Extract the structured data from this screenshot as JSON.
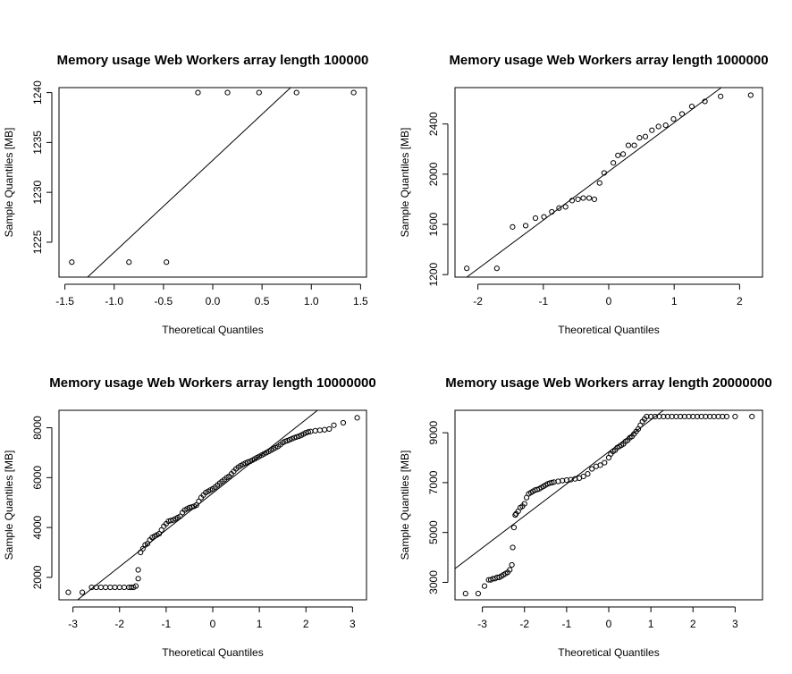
{
  "chart_data": [
    {
      "type": "scatter",
      "title": "Memory usage Web Workers array length  100000",
      "xlabel": "Theoretical Quantiles",
      "ylabel": "Sample Quantiles [MB]",
      "xlim": [
        -1.56,
        1.56
      ],
      "ylim": [
        1221.5,
        1240.5
      ],
      "xticks": [
        -1.5,
        -1.0,
        -0.5,
        0.0,
        0.5,
        1.0,
        1.5
      ],
      "xtick_labels": [
        "-1.5",
        "-1.0",
        "-0.5",
        "0.0",
        "0.5",
        "1.0",
        "1.5"
      ],
      "yticks": [
        1225,
        1230,
        1235,
        1240
      ],
      "ytick_labels": [
        "1225",
        "1230",
        "1235",
        "1240"
      ],
      "grid": false,
      "points": {
        "x": [
          -1.43,
          -0.85,
          -0.47,
          -0.15,
          0.15,
          0.47,
          0.85,
          1.43
        ],
        "y": [
          1223,
          1223,
          1223,
          1240,
          1240,
          1240,
          1240,
          1240
        ]
      },
      "qqline": {
        "x": [
          -1.27,
          0.79
        ],
        "y": [
          1221.5,
          1240.5
        ]
      }
    },
    {
      "type": "scatter",
      "title": "Memory usage Web Workers array length  1000000",
      "xlabel": "Theoretical Quantiles",
      "ylabel": "Sample Quantiles [MB]",
      "xlim": [
        -2.35,
        2.35
      ],
      "ylim": [
        1180,
        2690
      ],
      "xticks": [
        -2,
        -1,
        0,
        1,
        2
      ],
      "xtick_labels": [
        "-2",
        "-1",
        "0",
        "1",
        "2"
      ],
      "yticks": [
        1200,
        1600,
        2000,
        2400
      ],
      "ytick_labels": [
        "1200",
        "1600",
        "2000",
        "2400"
      ],
      "grid": false,
      "points": {
        "x": [
          -2.17,
          -1.71,
          -1.47,
          -1.27,
          -1.12,
          -0.99,
          -0.87,
          -0.76,
          -0.66,
          -0.56,
          -0.47,
          -0.39,
          -0.3,
          -0.22,
          -0.14,
          -0.07,
          0.07,
          0.14,
          0.22,
          0.3,
          0.39,
          0.47,
          0.56,
          0.66,
          0.76,
          0.87,
          0.99,
          1.12,
          1.27,
          1.47,
          1.71,
          2.17
        ],
        "y": [
          1250,
          1250,
          1580,
          1590,
          1650,
          1660,
          1700,
          1730,
          1740,
          1790,
          1800,
          1810,
          1810,
          1800,
          1930,
          2010,
          2090,
          2150,
          2160,
          2230,
          2230,
          2290,
          2300,
          2350,
          2380,
          2390,
          2440,
          2480,
          2540,
          2580,
          2620,
          2630
        ]
      },
      "qqline": {
        "x": [
          -2.17,
          1.72
        ],
        "y": [
          1180,
          2690
        ]
      }
    },
    {
      "type": "scatter",
      "title": "Memory usage Web Workers array length  10000000",
      "xlabel": "Theoretical Quantiles",
      "ylabel": "Sample Quantiles [MB]",
      "xlim": [
        -3.3,
        3.3
      ],
      "ylim": [
        1100,
        8700
      ],
      "xticks": [
        -3,
        -2,
        -1,
        0,
        1,
        2,
        3
      ],
      "xtick_labels": [
        "-3",
        "-2",
        "-1",
        "0",
        "1",
        "2",
        "3"
      ],
      "yticks": [
        2000,
        4000,
        6000,
        8000
      ],
      "ytick_labels": [
        "2000",
        "4000",
        "6000",
        "8000"
      ],
      "grid": false,
      "points": {
        "x": [
          -3.1,
          -2.8,
          -2.6,
          -2.5,
          -2.4,
          -2.3,
          -2.2,
          -2.1,
          -2.0,
          -1.9,
          -1.8,
          -1.75,
          -1.7,
          -1.65,
          -1.6,
          -1.6,
          -1.55,
          -1.5,
          -1.45,
          -1.4,
          -1.35,
          -1.3,
          -1.25,
          -1.2,
          -1.15,
          -1.1,
          -1.05,
          -1.0,
          -0.95,
          -0.9,
          -0.85,
          -0.8,
          -0.75,
          -0.7,
          -0.65,
          -0.6,
          -0.55,
          -0.5,
          -0.45,
          -0.4,
          -0.35,
          -0.3,
          -0.25,
          -0.2,
          -0.15,
          -0.1,
          -0.05,
          0.0,
          0.05,
          0.1,
          0.15,
          0.2,
          0.25,
          0.3,
          0.35,
          0.4,
          0.45,
          0.5,
          0.55,
          0.6,
          0.65,
          0.7,
          0.75,
          0.8,
          0.85,
          0.9,
          0.95,
          1.0,
          1.05,
          1.1,
          1.15,
          1.2,
          1.25,
          1.3,
          1.35,
          1.4,
          1.45,
          1.5,
          1.55,
          1.6,
          1.65,
          1.7,
          1.75,
          1.8,
          1.85,
          1.9,
          1.95,
          2.0,
          2.05,
          2.1,
          2.2,
          2.3,
          2.4,
          2.5,
          2.6,
          2.8,
          3.1
        ],
        "y": [
          1400,
          1400,
          1600,
          1600,
          1600,
          1600,
          1600,
          1600,
          1600,
          1600,
          1600,
          1600,
          1600,
          1650,
          1950,
          2300,
          3000,
          3150,
          3300,
          3350,
          3500,
          3600,
          3650,
          3700,
          3750,
          3900,
          4050,
          4150,
          4250,
          4280,
          4300,
          4350,
          4400,
          4450,
          4600,
          4700,
          4750,
          4800,
          4820,
          4850,
          4900,
          5050,
          5200,
          5300,
          5400,
          5450,
          5500,
          5550,
          5620,
          5700,
          5780,
          5850,
          5920,
          6000,
          6050,
          6150,
          6250,
          6350,
          6420,
          6480,
          6530,
          6580,
          6620,
          6650,
          6700,
          6750,
          6800,
          6850,
          6900,
          6950,
          7000,
          7050,
          7100,
          7150,
          7200,
          7250,
          7320,
          7400,
          7450,
          7480,
          7520,
          7560,
          7600,
          7630,
          7660,
          7700,
          7750,
          7800,
          7830,
          7850,
          7880,
          7900,
          7920,
          7950,
          8100,
          8200,
          8400
        ]
      },
      "qqline": {
        "x": [
          -2.9,
          2.25
        ],
        "y": [
          1100,
          8700
        ]
      }
    },
    {
      "type": "scatter",
      "title": "Memory usage Web Workers array length  20000000",
      "xlabel": "Theoretical Quantiles",
      "ylabel": "Sample Quantiles [MB]",
      "xlim": [
        -3.65,
        3.65
      ],
      "ylim": [
        2300,
        9900
      ],
      "xticks": [
        -3,
        -2,
        -1,
        0,
        1,
        2,
        3
      ],
      "xtick_labels": [
        "-3",
        "-2",
        "-1",
        "0",
        "1",
        "2",
        "3"
      ],
      "yticks": [
        3000,
        5000,
        7000,
        9000
      ],
      "ytick_labels": [
        "3000",
        "5000",
        "7000",
        "9000"
      ],
      "grid": false,
      "points": {
        "x": [
          -3.4,
          -3.1,
          -2.95,
          -2.85,
          -2.8,
          -2.75,
          -2.7,
          -2.65,
          -2.6,
          -2.55,
          -2.5,
          -2.45,
          -2.4,
          -2.35,
          -2.3,
          -2.28,
          -2.25,
          -2.22,
          -2.2,
          -2.15,
          -2.1,
          -2.05,
          -2.0,
          -1.95,
          -1.9,
          -1.85,
          -1.8,
          -1.75,
          -1.7,
          -1.65,
          -1.6,
          -1.55,
          -1.5,
          -1.45,
          -1.4,
          -1.35,
          -1.3,
          -1.2,
          -1.1,
          -1.0,
          -0.9,
          -0.8,
          -0.7,
          -0.6,
          -0.5,
          -0.4,
          -0.3,
          -0.2,
          -0.1,
          0.0,
          0.05,
          0.1,
          0.15,
          0.2,
          0.25,
          0.3,
          0.35,
          0.4,
          0.45,
          0.5,
          0.55,
          0.6,
          0.65,
          0.7,
          0.75,
          0.8,
          0.85,
          0.9,
          1.0,
          1.1,
          1.2,
          1.3,
          1.4,
          1.5,
          1.6,
          1.7,
          1.8,
          1.9,
          2.0,
          2.1,
          2.2,
          2.3,
          2.4,
          2.5,
          2.6,
          2.7,
          2.8,
          3.0,
          3.4
        ],
        "y": [
          2550,
          2550,
          2850,
          3100,
          3100,
          3150,
          3150,
          3200,
          3200,
          3250,
          3300,
          3350,
          3400,
          3500,
          3700,
          4400,
          5200,
          5700,
          5750,
          5850,
          6000,
          6050,
          6150,
          6400,
          6550,
          6600,
          6650,
          6700,
          6720,
          6750,
          6800,
          6850,
          6900,
          6950,
          6980,
          7000,
          7020,
          7050,
          7080,
          7100,
          7120,
          7150,
          7180,
          7250,
          7350,
          7550,
          7650,
          7700,
          7800,
          8000,
          8150,
          8250,
          8300,
          8400,
          8450,
          8500,
          8550,
          8650,
          8700,
          8800,
          8850,
          8950,
          9050,
          9150,
          9300,
          9450,
          9550,
          9650,
          9650,
          9650,
          9650,
          9650,
          9650,
          9650,
          9650,
          9650,
          9650,
          9650,
          9650,
          9650,
          9650,
          9650,
          9650,
          9650,
          9650,
          9650,
          9650,
          9650,
          9650
        ]
      },
      "qqline": {
        "x": [
          -3.65,
          1.3
        ],
        "y": [
          3550,
          9900
        ]
      }
    }
  ]
}
